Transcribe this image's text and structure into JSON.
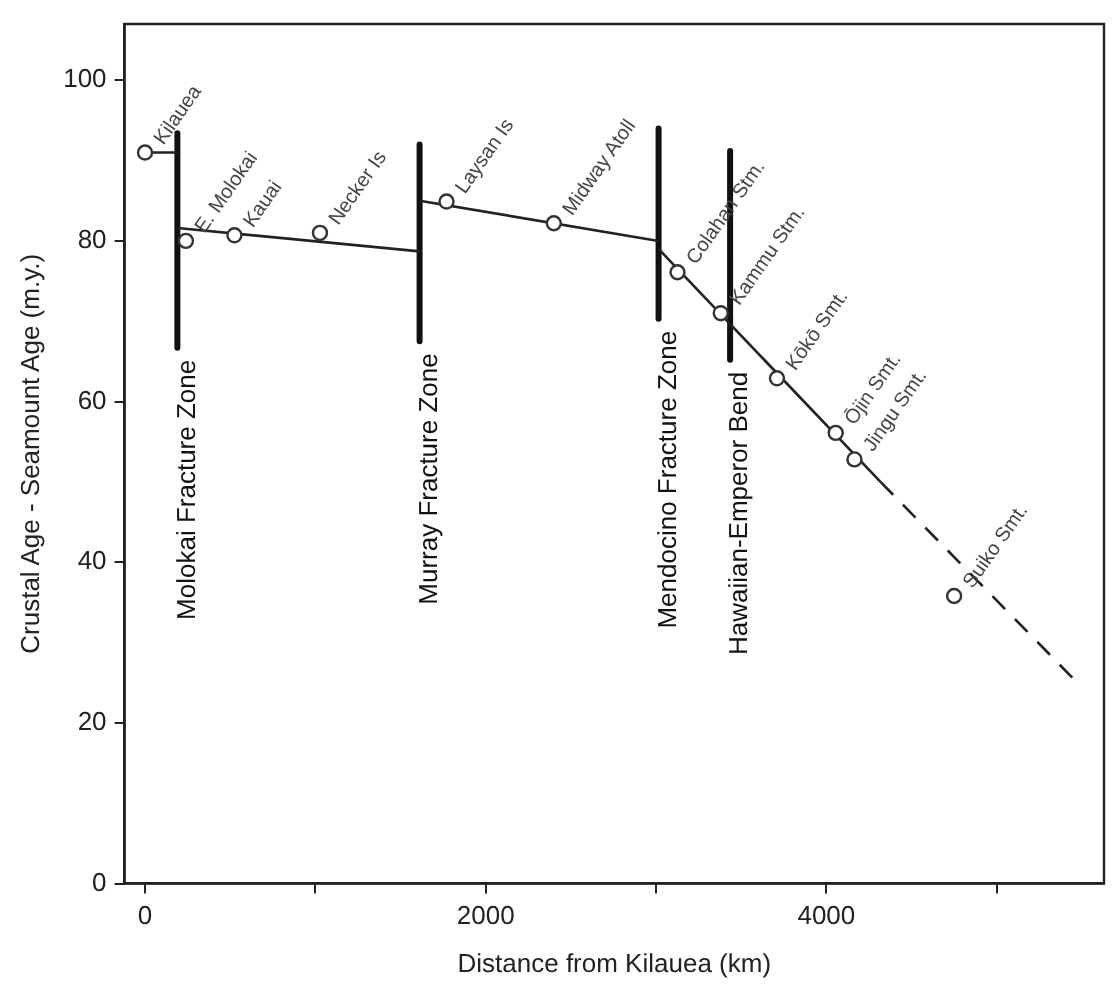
{
  "chart_data": {
    "type": "scatter",
    "xlabel": "Distance from Kilauea (km)",
    "ylabel": "Crustal Age - Seamount Age (m.y.)",
    "xlim": [
      -120,
      5630
    ],
    "ylim": [
      0,
      107
    ],
    "xticks": [
      0,
      {
        "value": 1000,
        "label": null
      },
      2000,
      {
        "value": 3000,
        "label": null
      },
      4000,
      {
        "value": 5000,
        "label": null
      }
    ],
    "yticks": [
      0,
      20,
      40,
      60,
      80,
      100
    ],
    "series": [
      {
        "marker": "circle",
        "color": "#333333",
        "x": [
          0,
          240,
          525,
          1027,
          1770,
          2400,
          3126,
          3380,
          3710,
          4055,
          4165,
          4750
        ],
        "values": [
          91,
          80,
          80.7,
          81,
          84.9,
          82.2,
          76.1,
          71,
          62.9,
          56.1,
          52.8,
          35.8
        ]
      },
      {
        "type": "line",
        "marker": "none",
        "color": "#222222",
        "x": [
          0,
          190
        ],
        "values": [
          91,
          91
        ]
      },
      {
        "type": "line",
        "marker": "none",
        "color": "#222222",
        "x": [
          190,
          1612
        ],
        "values": [
          81.6,
          78.7
        ]
      },
      {
        "type": "line",
        "marker": "none",
        "color": "#222222",
        "x": [
          1612,
          3015
        ],
        "values": [
          85,
          80
        ]
      },
      {
        "type": "line",
        "marker": "none",
        "color": "#222222",
        "x": [
          3015,
          4318
        ],
        "values": [
          79,
          50
        ]
      },
      {
        "type": "line",
        "marker": "none",
        "color": "#222222",
        "line_style": "dashed",
        "x": [
          4318,
          5455
        ],
        "values": [
          50,
          25.4
        ]
      },
      {
        "type": "line",
        "marker": "none",
        "name": "Molokai Fracture Zone",
        "color": "#111111",
        "x": [
          190,
          190
        ],
        "values": [
          93.4,
          66.7
        ]
      },
      {
        "type": "line",
        "marker": "none",
        "name": "Murray Fracture Zone",
        "color": "#111111",
        "x": [
          1612,
          1612
        ],
        "values": [
          92,
          67.5
        ]
      },
      {
        "type": "line",
        "marker": "none",
        "name": "Mendocino Fracture Zone",
        "color": "#111111",
        "x": [
          3015,
          3015
        ],
        "values": [
          94,
          70.3
        ]
      },
      {
        "type": "line",
        "marker": "none",
        "name": "Hawaiian-Emperor Bend",
        "color": "#111111",
        "x": [
          3435,
          3435
        ],
        "values": [
          91.2,
          65.2
        ]
      }
    ],
    "annotations": [
      {
        "text": "Kilauea",
        "x": 0,
        "y": 91
      },
      {
        "text": "E. Molokai",
        "x": 240,
        "y": 80
      },
      {
        "text": "Kauai",
        "x": 525,
        "y": 80.7
      },
      {
        "text": "Necker Is",
        "x": 1027,
        "y": 81
      },
      {
        "text": "Laysan Is",
        "x": 1770,
        "y": 84.9
      },
      {
        "text": "Midway Atoll",
        "x": 2400,
        "y": 82.2
      },
      {
        "text": "Colahan Stm.",
        "x": 3126,
        "y": 76.1
      },
      {
        "text": "Kammu Stm.",
        "x": 3380,
        "y": 71
      },
      {
        "text": "Kōkō Smt.",
        "x": 3710,
        "y": 62.9
      },
      {
        "text": "Ōjin Smt.",
        "x": 4055,
        "y": 56.1
      },
      {
        "text": "Jingu Smt.",
        "x": 4165,
        "y": 52.8
      },
      {
        "text": "Suiko Smt.",
        "x": 4750,
        "y": 35.8
      }
    ]
  }
}
